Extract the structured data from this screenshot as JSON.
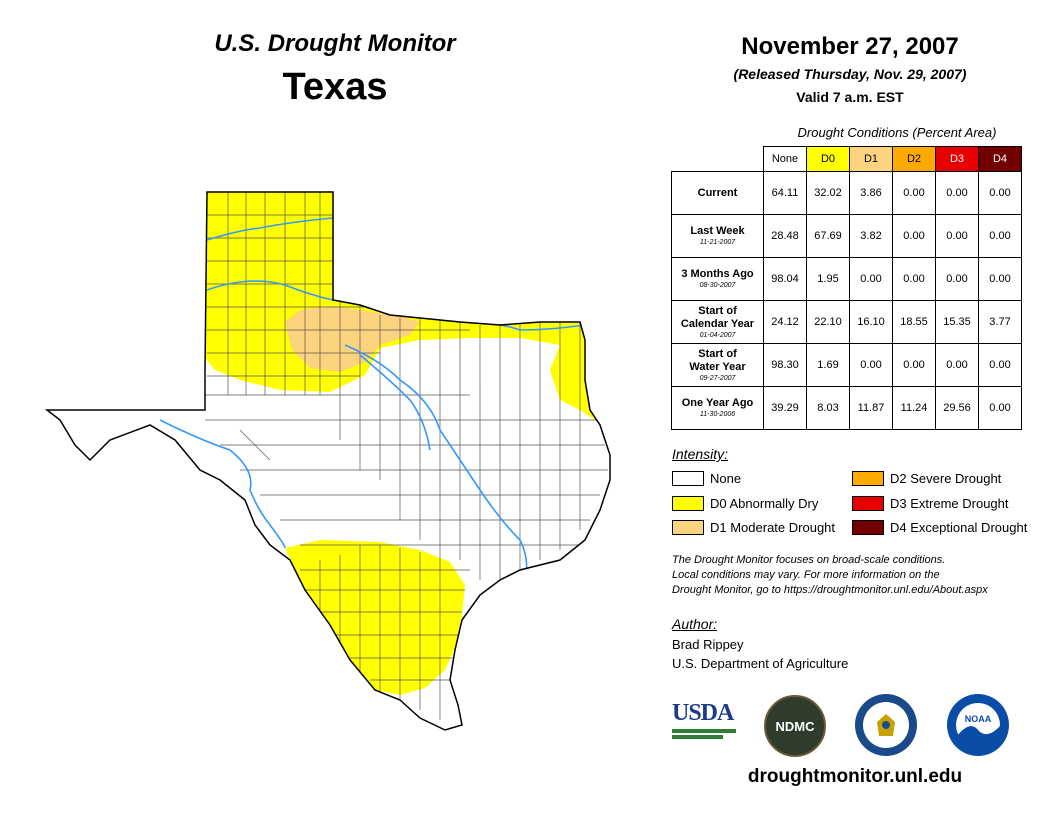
{
  "header": {
    "monitor_title": "U.S. Drought Monitor",
    "state": "Texas"
  },
  "date_block": {
    "date": "November 27, 2007",
    "released": "(Released Thursday, Nov. 29, 2007)",
    "valid": "Valid 7 a.m. EST"
  },
  "table": {
    "caption": "Drought Conditions (Percent Area)",
    "columns": [
      {
        "label": "None",
        "color": "#ffffff",
        "text_color": "#000000"
      },
      {
        "label": "D0",
        "color": "#ffff00",
        "text_color": "#000000"
      },
      {
        "label": "D1",
        "color": "#fcd37f",
        "text_color": "#000000"
      },
      {
        "label": "D2",
        "color": "#ffaa00",
        "text_color": "#000000"
      },
      {
        "label": "D3",
        "color": "#e60000",
        "text_color": "#ffffff"
      },
      {
        "label": "D4",
        "color": "#730000",
        "text_color": "#ffffff"
      }
    ],
    "rows": [
      {
        "label": [
          "Current"
        ],
        "date": "",
        "values": [
          "64.11",
          "32.02",
          "3.86",
          "0.00",
          "0.00",
          "0.00"
        ]
      },
      {
        "label": [
          "Last Week"
        ],
        "date": "11-21-2007",
        "values": [
          "28.48",
          "67.69",
          "3.82",
          "0.00",
          "0.00",
          "0.00"
        ]
      },
      {
        "label": [
          "3 Months Ago"
        ],
        "date": "08-30-2007",
        "values": [
          "98.04",
          "1.95",
          "0.00",
          "0.00",
          "0.00",
          "0.00"
        ]
      },
      {
        "label": [
          "Start of",
          "Calendar Year"
        ],
        "date": "01-04-2007",
        "values": [
          "24.12",
          "22.10",
          "16.10",
          "18.55",
          "15.35",
          "3.77"
        ]
      },
      {
        "label": [
          "Start of",
          "Water Year"
        ],
        "date": "09-27-2007",
        "values": [
          "98.30",
          "1.69",
          "0.00",
          "0.00",
          "0.00",
          "0.00"
        ]
      },
      {
        "label": [
          "One Year Ago"
        ],
        "date": "11-30-2006",
        "values": [
          "39.29",
          "8.03",
          "11.87",
          "11.24",
          "29.56",
          "0.00"
        ]
      }
    ]
  },
  "legend": {
    "title": "Intensity:",
    "items": [
      {
        "label": "None",
        "color": "#ffffff"
      },
      {
        "label": "D0 Abnormally Dry",
        "color": "#ffff00"
      },
      {
        "label": "D1 Moderate Drought",
        "color": "#fcd37f"
      },
      {
        "label": "D2 Severe Drought",
        "color": "#ffaa00"
      },
      {
        "label": "D3 Extreme Drought",
        "color": "#e60000"
      },
      {
        "label": "D4 Exceptional Drought",
        "color": "#730000"
      }
    ]
  },
  "disclaimer": {
    "line1": "The Drought Monitor focuses on broad-scale conditions.",
    "line2": "Local conditions may vary. For more information on the",
    "line3": "Drought Monitor, go to https://droughtmonitor.unl.edu/About.aspx"
  },
  "author": {
    "label": "Author:",
    "name": "Brad Rippey",
    "org": "U.S. Department of Agriculture"
  },
  "logos": {
    "usda": "USDA",
    "ndmc": "NDMC",
    "noaa": "NOAA"
  },
  "footer": {
    "url": "droughtmonitor.unl.edu"
  },
  "map_colors": {
    "outline": "#000000",
    "river": "#3399ff",
    "county_line": "#555555"
  }
}
